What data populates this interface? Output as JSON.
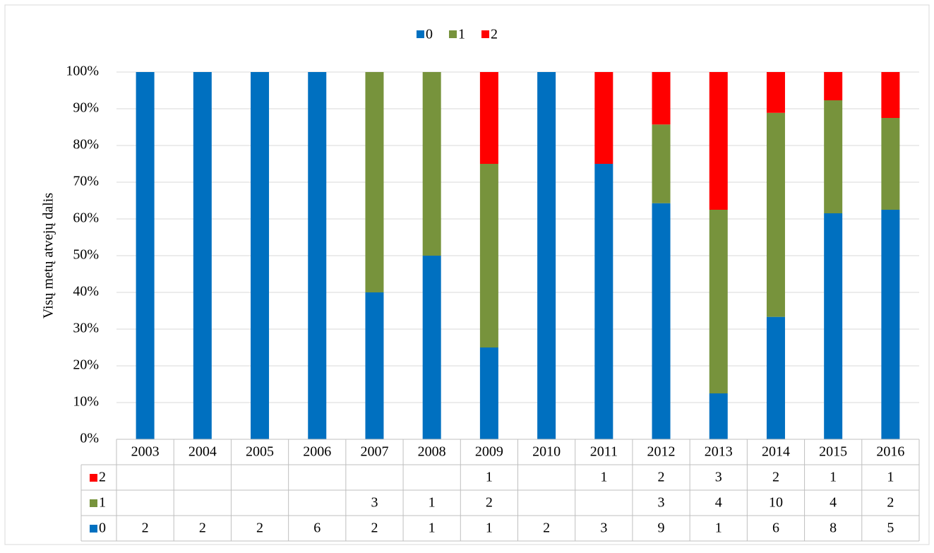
{
  "chart_data": {
    "type": "percent_stacked_bar",
    "y_label": "Visų metų atvejų dalis",
    "categories": [
      "2003",
      "2004",
      "2005",
      "2006",
      "2007",
      "2008",
      "2009",
      "2010",
      "2011",
      "2012",
      "2013",
      "2014",
      "2015",
      "2016"
    ],
    "series": [
      {
        "name": "0",
        "color": "#0070c0",
        "values": [
          2,
          2,
          2,
          6,
          2,
          1,
          1,
          2,
          3,
          9,
          1,
          6,
          8,
          5
        ]
      },
      {
        "name": "1",
        "color": "#77933c",
        "values": [
          null,
          null,
          null,
          null,
          3,
          1,
          2,
          null,
          null,
          3,
          4,
          10,
          4,
          2
        ]
      },
      {
        "name": "2",
        "color": "#ff0000",
        "values": [
          null,
          null,
          null,
          null,
          null,
          null,
          1,
          null,
          1,
          2,
          3,
          2,
          1,
          1
        ]
      }
    ],
    "ylim": [
      0,
      100
    ],
    "yticks": [
      {
        "value": 0,
        "label": "0%"
      },
      {
        "value": 10,
        "label": "10%"
      },
      {
        "value": 20,
        "label": "20%"
      },
      {
        "value": 30,
        "label": "30%"
      },
      {
        "value": 40,
        "label": "40%"
      },
      {
        "value": 50,
        "label": "50%"
      },
      {
        "value": 60,
        "label": "60%"
      },
      {
        "value": 70,
        "label": "70%"
      },
      {
        "value": 80,
        "label": "80%"
      },
      {
        "value": 90,
        "label": "90%"
      },
      {
        "value": 100,
        "label": "100%"
      }
    ],
    "grid": true,
    "legend": "top",
    "data_table": true
  }
}
